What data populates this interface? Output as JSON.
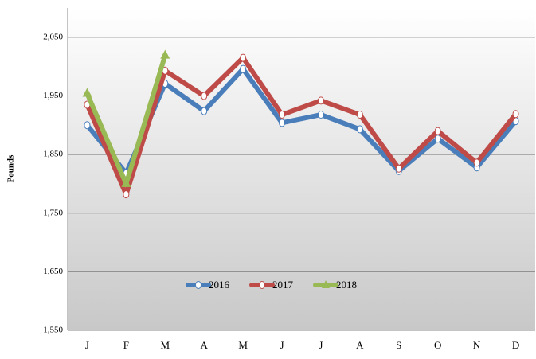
{
  "chart_data": {
    "type": "line",
    "y_label": "Pounds",
    "categories": [
      "J",
      "F",
      "M",
      "A",
      "M",
      "J",
      "J",
      "A",
      "S",
      "O",
      "N",
      "D"
    ],
    "series": [
      {
        "name": "2016",
        "color": "#4a7ebb",
        "values": [
          1900,
          1818,
          1971,
          1924,
          1996,
          1904,
          1918,
          1893,
          1822,
          1877,
          1828,
          1907
        ]
      },
      {
        "name": "2017",
        "color": "#be4b48",
        "values": [
          1935,
          1782,
          1993,
          1950,
          2015,
          1918,
          1942,
          1918,
          1826,
          1890,
          1836,
          1919
        ]
      },
      {
        "name": "2018",
        "color": "#98b954",
        "values": [
          1954,
          1800,
          2019,
          null,
          null,
          null,
          null,
          null,
          null,
          null,
          null,
          null
        ]
      }
    ],
    "ylim": [
      1550,
      2100
    ],
    "yticks": [
      {
        "value": 1550,
        "label": "1,550"
      },
      {
        "value": 1650,
        "label": "1,650"
      },
      {
        "value": 1750,
        "label": "1,750"
      },
      {
        "value": 1850,
        "label": "1,850"
      },
      {
        "value": 1950,
        "label": "1,950"
      },
      {
        "value": 2050,
        "label": "2,050"
      }
    ],
    "grid": true
  }
}
